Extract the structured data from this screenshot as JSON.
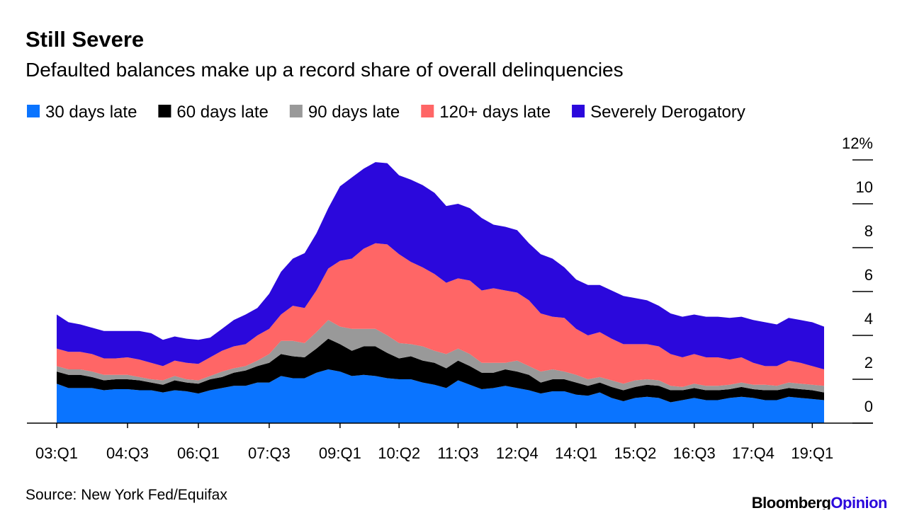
{
  "chart_data": {
    "type": "stacked_area",
    "title": "Still Severe",
    "subtitle": "Defaulted balances make up a record share of overall delinquencies",
    "source": "Source: New York Fed/Equifax",
    "brand": "Bloomberg",
    "brand_suffix": "Opinion",
    "categories": [
      "03:Q1",
      null,
      null,
      null,
      null,
      null,
      "04:Q3",
      null,
      null,
      null,
      null,
      null,
      "06:Q1",
      null,
      null,
      null,
      null,
      null,
      "07:Q3",
      null,
      null,
      null,
      null,
      null,
      "09:Q1",
      null,
      null,
      null,
      null,
      "10:Q2",
      null,
      null,
      null,
      null,
      "11:Q3",
      null,
      null,
      null,
      null,
      "12:Q4",
      null,
      null,
      null,
      null,
      "14:Q1",
      null,
      null,
      null,
      null,
      "15:Q2",
      null,
      null,
      null,
      null,
      "16:Q3",
      null,
      null,
      null,
      null,
      "17:Q4",
      null,
      null,
      null,
      null,
      "19:Q1",
      null
    ],
    "ylim": [
      0,
      12
    ],
    "yticks": [
      0,
      2,
      4,
      6,
      8,
      10,
      {
        "value": 12,
        "label": "12%"
      }
    ],
    "legend": "top",
    "series": [
      {
        "name": "30 days late",
        "color": "#0a74ff",
        "values": [
          1.8,
          1.6,
          1.6,
          1.6,
          1.5,
          1.55,
          1.55,
          1.5,
          1.5,
          1.4,
          1.5,
          1.45,
          1.35,
          1.5,
          1.6,
          1.7,
          1.7,
          1.85,
          1.85,
          2.15,
          2.05,
          2.05,
          2.3,
          2.45,
          2.35,
          2.15,
          2.2,
          2.15,
          2.05,
          2.0,
          2.0,
          1.85,
          1.75,
          1.6,
          1.95,
          1.75,
          1.55,
          1.6,
          1.7,
          1.6,
          1.5,
          1.35,
          1.45,
          1.45,
          1.3,
          1.25,
          1.4,
          1.15,
          1.0,
          1.15,
          1.2,
          1.15,
          0.95,
          1.05,
          1.15,
          1.05,
          1.05,
          1.15,
          1.2,
          1.15,
          1.05,
          1.05,
          1.2,
          1.15,
          1.1,
          1.05
        ]
      },
      {
        "name": "60 days late",
        "color": "#000000",
        "values": [
          0.55,
          0.6,
          0.6,
          0.5,
          0.45,
          0.45,
          0.45,
          0.45,
          0.35,
          0.35,
          0.45,
          0.4,
          0.45,
          0.5,
          0.5,
          0.6,
          0.7,
          0.75,
          0.9,
          1.0,
          1.0,
          0.95,
          1.1,
          1.4,
          1.25,
          1.15,
          1.3,
          1.35,
          1.15,
          0.95,
          1.05,
          1.0,
          1.0,
          0.9,
          0.9,
          0.85,
          0.75,
          0.7,
          0.75,
          0.75,
          0.7,
          0.5,
          0.55,
          0.55,
          0.55,
          0.45,
          0.45,
          0.5,
          0.5,
          0.5,
          0.55,
          0.55,
          0.55,
          0.45,
          0.45,
          0.45,
          0.45,
          0.4,
          0.45,
          0.4,
          0.45,
          0.45,
          0.4,
          0.4,
          0.4,
          0.35
        ]
      },
      {
        "name": "90 days late",
        "color": "#999999",
        "values": [
          0.25,
          0.25,
          0.25,
          0.25,
          0.25,
          0.2,
          0.2,
          0.15,
          0.15,
          0.2,
          0.2,
          0.15,
          0.15,
          0.15,
          0.25,
          0.2,
          0.2,
          0.25,
          0.4,
          0.6,
          0.7,
          0.65,
          0.75,
          0.85,
          0.8,
          1.0,
          0.8,
          0.8,
          0.8,
          0.7,
          0.55,
          0.65,
          0.55,
          0.65,
          0.55,
          0.55,
          0.45,
          0.45,
          0.3,
          0.5,
          0.4,
          0.5,
          0.45,
          0.35,
          0.35,
          0.3,
          0.25,
          0.3,
          0.3,
          0.3,
          0.25,
          0.25,
          0.2,
          0.15,
          0.2,
          0.2,
          0.2,
          0.2,
          0.2,
          0.2,
          0.25,
          0.2,
          0.25,
          0.25,
          0.25,
          0.3
        ]
      },
      {
        "name": "120+ days late",
        "color": "#ff6666",
        "values": [
          0.8,
          0.8,
          0.8,
          0.8,
          0.75,
          0.75,
          0.8,
          0.8,
          0.75,
          0.65,
          0.7,
          0.75,
          0.75,
          0.85,
          0.95,
          1.0,
          1.0,
          1.15,
          1.15,
          1.2,
          1.6,
          1.6,
          1.9,
          2.35,
          3.0,
          3.2,
          3.65,
          3.9,
          4.15,
          4.05,
          3.75,
          3.6,
          3.5,
          3.25,
          3.2,
          3.35,
          3.3,
          3.4,
          3.3,
          3.1,
          3.0,
          2.65,
          2.4,
          2.45,
          2.1,
          2.0,
          2.05,
          1.9,
          1.8,
          1.65,
          1.6,
          1.55,
          1.45,
          1.35,
          1.35,
          1.3,
          1.3,
          1.15,
          1.15,
          1.0,
          0.85,
          0.9,
          1.0,
          0.95,
          0.85,
          0.75
        ]
      },
      {
        "name": "Severely Derogatory",
        "color": "#2b08dc",
        "values": [
          1.55,
          1.35,
          1.25,
          1.2,
          1.25,
          1.25,
          1.2,
          1.3,
          1.35,
          1.2,
          1.1,
          1.1,
          1.1,
          0.9,
          1.0,
          1.2,
          1.35,
          1.25,
          1.6,
          1.95,
          2.15,
          2.5,
          2.6,
          2.75,
          3.4,
          3.7,
          3.65,
          3.7,
          3.7,
          3.6,
          3.75,
          3.75,
          3.7,
          3.5,
          3.4,
          3.3,
          3.3,
          2.9,
          2.9,
          2.85,
          2.6,
          2.7,
          2.65,
          2.3,
          2.25,
          2.3,
          2.15,
          2.2,
          2.2,
          2.1,
          2.0,
          1.85,
          1.85,
          1.85,
          1.8,
          1.85,
          1.85,
          1.9,
          1.85,
          1.95,
          2.0,
          1.9,
          1.95,
          1.95,
          2.0,
          1.95
        ]
      }
    ]
  }
}
